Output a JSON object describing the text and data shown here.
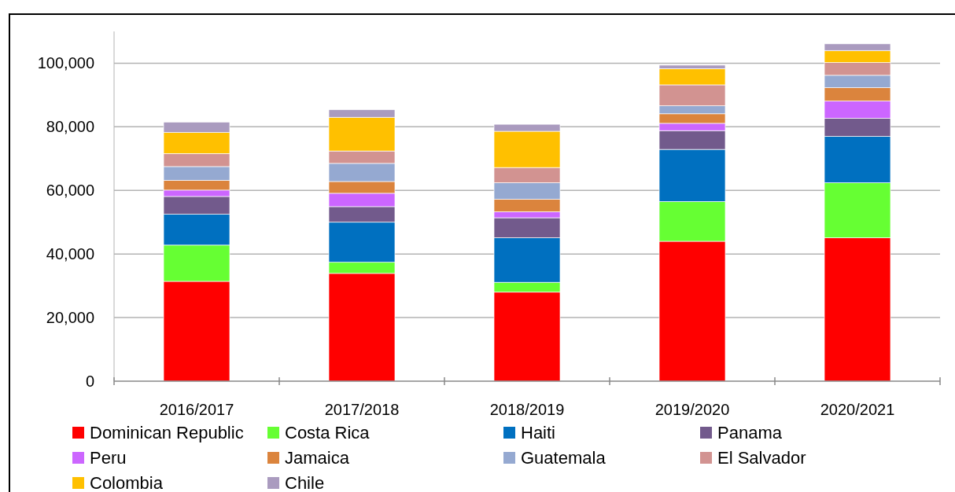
{
  "chart_data": {
    "type": "bar",
    "stacked": true,
    "categories": [
      "2016/2017",
      "2017/2018",
      "2018/2019",
      "2019/2020",
      "2020/2021"
    ],
    "ylim": [
      0,
      110000
    ],
    "yticks": [
      {
        "value": 0,
        "label": "0"
      },
      {
        "value": 20000,
        "label": "20,000"
      },
      {
        "value": 40000,
        "label": "40,000"
      },
      {
        "value": 60000,
        "label": "60,000"
      },
      {
        "value": 80000,
        "label": "80,000"
      },
      {
        "value": 100000,
        "label": "100,000"
      }
    ],
    "grid": "y",
    "legend": "bottom",
    "series": [
      {
        "name": "Dominican Republic",
        "color": "#ff0000",
        "values": [
          31400,
          33900,
          28000,
          44000,
          45100
        ]
      },
      {
        "name": "Costa Rica",
        "color": "#66ff33",
        "values": [
          11400,
          3500,
          3100,
          12500,
          17300
        ]
      },
      {
        "name": "Haiti",
        "color": "#0070c0",
        "values": [
          9700,
          12600,
          14000,
          16400,
          14600
        ]
      },
      {
        "name": "Panama",
        "color": "#725a8c",
        "values": [
          5600,
          4900,
          6300,
          5900,
          5700
        ]
      },
      {
        "name": "Peru",
        "color": "#cc66ff",
        "values": [
          2000,
          4200,
          1900,
          2300,
          5400
        ]
      },
      {
        "name": "Jamaica",
        "color": "#db843d",
        "values": [
          3100,
          3700,
          3900,
          3000,
          4200
        ]
      },
      {
        "name": "Guatemala",
        "color": "#95a9d1",
        "values": [
          4300,
          5700,
          5200,
          2500,
          3900
        ]
      },
      {
        "name": "El Salvador",
        "color": "#d29391",
        "values": [
          4100,
          3900,
          4800,
          6600,
          4000
        ]
      },
      {
        "name": "Colombia",
        "color": "#ffc000",
        "values": [
          6600,
          10600,
          11400,
          5100,
          3800
        ]
      },
      {
        "name": "Chile",
        "color": "#aa9bbf",
        "values": [
          3300,
          2400,
          2200,
          1100,
          2100
        ]
      }
    ]
  }
}
